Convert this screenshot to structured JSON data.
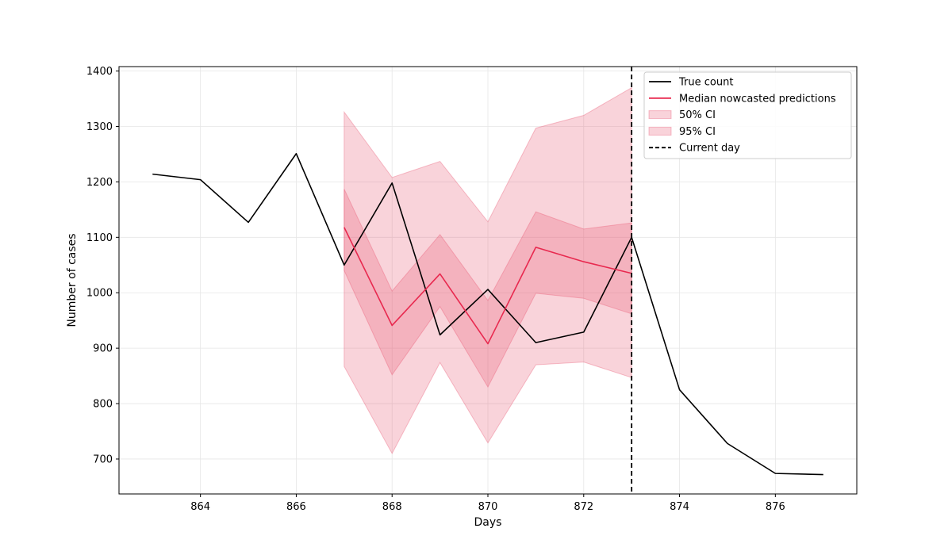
{
  "chart_data": {
    "type": "line",
    "title": "",
    "xlabel": "Days",
    "ylabel": "Number of cases",
    "xlim": [
      862.3,
      877.7
    ],
    "ylim": [
      637,
      1408
    ],
    "xticks": [
      864,
      866,
      868,
      870,
      872,
      874,
      876
    ],
    "yticks": [
      700,
      800,
      900,
      1000,
      1100,
      1200,
      1300,
      1400
    ],
    "grid": true,
    "legend_position": "top-right",
    "current_day": 873,
    "series": [
      {
        "name": "True count",
        "color": "#000000",
        "x": [
          863,
          864,
          865,
          866,
          867,
          868,
          869,
          870,
          871,
          872,
          873,
          874,
          875,
          876,
          877
        ],
        "y": [
          1214,
          1204,
          1127,
          1251,
          1050,
          1198,
          924,
          1006,
          910,
          929,
          1100,
          825,
          728,
          674,
          672
        ]
      },
      {
        "name": "Median nowcasted predictions",
        "color": "#e8294f",
        "x": [
          867,
          868,
          869,
          870,
          871,
          872,
          873
        ],
        "y": [
          1118,
          941,
          1034,
          908,
          1082,
          1056,
          1035
        ]
      }
    ],
    "bands": [
      {
        "name": "50% CI",
        "color": "#e8506c",
        "x": [
          867,
          868,
          869,
          870,
          871,
          872,
          873
        ],
        "lower": [
          1040,
          852,
          975,
          830,
          999,
          990,
          962
        ],
        "upper": [
          1187,
          1003,
          1105,
          986,
          1146,
          1115,
          1126
        ]
      },
      {
        "name": "95% CI",
        "color": "#e8506c",
        "x": [
          867,
          868,
          869,
          870,
          871,
          872,
          873
        ],
        "lower": [
          867,
          710,
          874,
          729,
          870,
          875,
          847
        ],
        "upper": [
          1326,
          1208,
          1237,
          1128,
          1297,
          1320,
          1370
        ]
      }
    ],
    "vline": {
      "name": "Current day",
      "x": 873,
      "color": "#000000"
    }
  }
}
